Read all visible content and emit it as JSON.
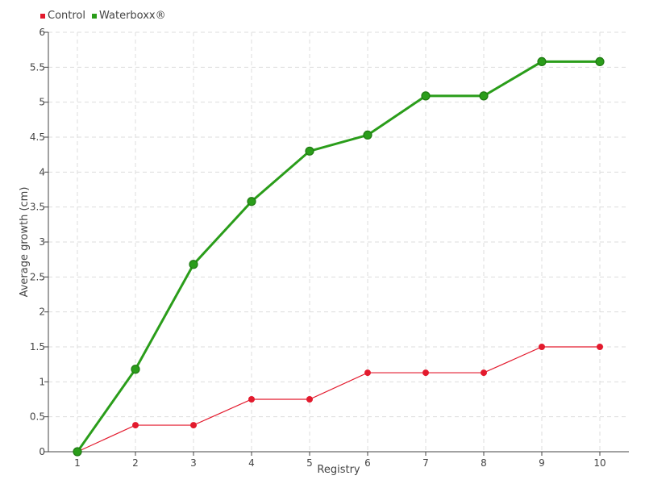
{
  "chart_data": {
    "type": "line",
    "title": "",
    "xlabel": "Registry",
    "ylabel": "Average growth (cm)",
    "categories": [
      "1",
      "2",
      "3",
      "4",
      "5",
      "6",
      "7",
      "8",
      "9",
      "10"
    ],
    "ylim": [
      0,
      6
    ],
    "yticks": [
      "0",
      "0.5",
      "1",
      "1.5",
      "2",
      "2.5",
      "3",
      "3.5",
      "4",
      "4.5",
      "5",
      "5.5",
      "6"
    ],
    "grid": true,
    "legend_position": "top-left",
    "series": [
      {
        "name": "Control",
        "color": "#e31a2d",
        "values": [
          0,
          0.38,
          0.38,
          0.75,
          0.75,
          1.13,
          1.13,
          1.13,
          1.5,
          1.5
        ]
      },
      {
        "name": "Waterboxx®",
        "color": "#2a9d1a",
        "values": [
          0,
          1.18,
          2.68,
          3.58,
          4.3,
          4.53,
          5.09,
          5.09,
          5.58,
          5.58
        ]
      }
    ]
  }
}
